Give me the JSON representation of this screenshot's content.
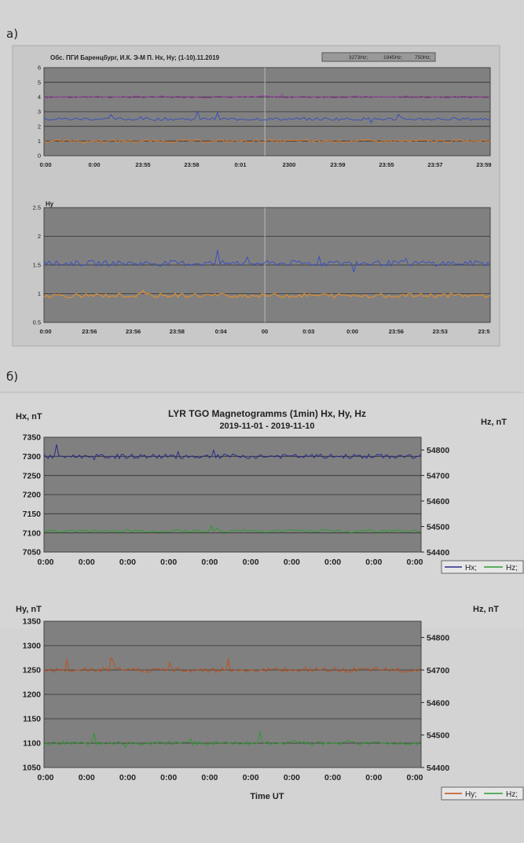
{
  "panel_a_label": "а)",
  "panel_b_label": "б)",
  "chart_data": [
    {
      "type": "line",
      "title": "Обс. ПГИ Баренцбург, И.К. Э-М П. Нх, Ну; (1-10).11.2019",
      "legend": [
        "3273Hz;",
        "1945Hz;",
        "750Hz;"
      ],
      "legend_position": "top-right",
      "ylabel": "",
      "ylim": [
        0,
        6
      ],
      "yticks": [
        "0",
        "1",
        "2",
        "3",
        "4",
        "5",
        "6"
      ],
      "xticks": [
        "0:00",
        "0:00",
        "23:55",
        "23:58",
        "0:01",
        "2300",
        "23:59",
        "23:55",
        "23:57",
        "23:59"
      ],
      "grid": true,
      "series": [
        {
          "color": "#a040a8",
          "base": 4.0,
          "noise": 0.08
        },
        {
          "color": "#3a50b8",
          "base": 2.5,
          "noise": 0.1
        },
        {
          "color": "#e87a20",
          "base": 1.0,
          "noise": 0.1
        }
      ]
    },
    {
      "type": "line",
      "ylabel": "Hy",
      "ylim": [
        0.5,
        2.5
      ],
      "yticks": [
        "0.5",
        "1",
        "1.5",
        "2",
        "2.5"
      ],
      "xticks": [
        "0:00",
        "23:56",
        "23:56",
        "23:58",
        "0:04",
        "00",
        "0:03",
        "0:00",
        "23:56",
        "23:53",
        "23:5"
      ],
      "grid": true,
      "series": [
        {
          "color": "#3a50c0",
          "base": 1.53,
          "noise": 0.05
        },
        {
          "color": "#f09020",
          "base": 0.97,
          "noise": 0.04
        }
      ]
    },
    {
      "type": "line",
      "title": "LYR TGO Magnetogramms (1min) Hx, Hy, Hz",
      "subtitle": "2019-11-01 - 2019-11-10",
      "ylabel": "Hx, nT",
      "y2label": "Hz, nT",
      "ylim": [
        7050,
        7350
      ],
      "yticks": [
        "7050",
        "7100",
        "7150",
        "7200",
        "7250",
        "7300",
        "7350"
      ],
      "y2lim": [
        54400,
        54850
      ],
      "y2ticks": [
        "54400",
        "54500",
        "54600",
        "54700",
        "54800"
      ],
      "xticks": [
        "0:00",
        "0:00",
        "0:00",
        "0:00",
        "0:00",
        "0:00",
        "0:00",
        "0:00",
        "0:00",
        "0:00"
      ],
      "legend": [
        "Hx;",
        "Hz;"
      ],
      "legend_position": "bottom-right",
      "grid": true,
      "series": [
        {
          "name": "Hx",
          "color": "#2a2a8a",
          "base": 7300,
          "noise": 6
        },
        {
          "name": "Hz",
          "color": "#2e9a30",
          "base": 7105,
          "noise": 4
        }
      ]
    },
    {
      "type": "line",
      "ylabel": "Hy, nT",
      "y2label": "Hz, nT",
      "xlabel": "Time UT",
      "ylim": [
        1050,
        1350
      ],
      "yticks": [
        "1050",
        "1100",
        "1150",
        "1200",
        "1250",
        "1300",
        "1350"
      ],
      "y2lim": [
        54400,
        54850
      ],
      "y2ticks": [
        "54400",
        "54500",
        "54600",
        "54700",
        "54800"
      ],
      "xticks": [
        "0:00",
        "0:00",
        "0:00",
        "0:00",
        "0:00",
        "0:00",
        "0:00",
        "0:00",
        "0:00",
        "0:00"
      ],
      "legend": [
        "Hy;",
        "Hz;"
      ],
      "legend_position": "bottom-right",
      "grid": true,
      "series": [
        {
          "name": "Hy",
          "color": "#c0501a",
          "base": 1250,
          "noise": 5
        },
        {
          "name": "Hz",
          "color": "#2e9a30",
          "base": 1100,
          "noise": 4
        }
      ]
    }
  ],
  "colors": {
    "plot_bg": "#808080",
    "panel_bg": "#d3d3d3",
    "grid": "#303030"
  }
}
